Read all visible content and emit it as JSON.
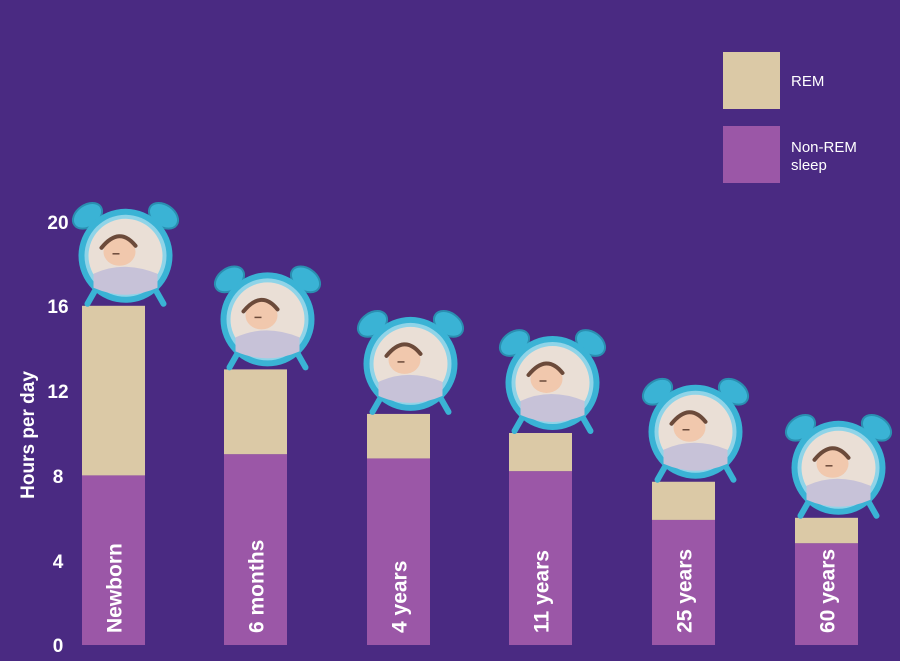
{
  "colors": {
    "background": "#4a2a82",
    "rem": "#dbc9a6",
    "non_rem": "#9b57a7",
    "clock_teal": "#3ab3d5",
    "clock_light": "#8fd4e8"
  },
  "chart_data": {
    "type": "bar",
    "stacked": true,
    "ylabel": "Hours per day",
    "ylim": [
      0,
      20
    ],
    "yticks": [
      "0",
      "4",
      "8",
      "12",
      "16",
      "20"
    ],
    "categories": [
      "Newborn",
      "6 months",
      "4 years",
      "11 years",
      "25 years",
      "60 years"
    ],
    "series": [
      {
        "name": "Non-REM sleep",
        "values": [
          8,
          9,
          8.8,
          8.2,
          5.9,
          4.8
        ]
      },
      {
        "name": "REM",
        "values": [
          8,
          4,
          2.1,
          1.8,
          1.8,
          1.2
        ]
      }
    ],
    "legend": {
      "position": "top-right",
      "items": [
        {
          "label": "REM",
          "series": 1
        },
        {
          "label_lines": [
            "Non-REM",
            "sleep"
          ],
          "series": 0
        }
      ]
    },
    "icons": [
      "sleeping-newborn-clock-icon",
      "sleeping-baby-clock-icon",
      "sleeping-child-clock-icon",
      "sleeping-boy-clock-icon",
      "sleeping-woman-clock-icon",
      "sleeping-elder-clock-icon"
    ]
  }
}
